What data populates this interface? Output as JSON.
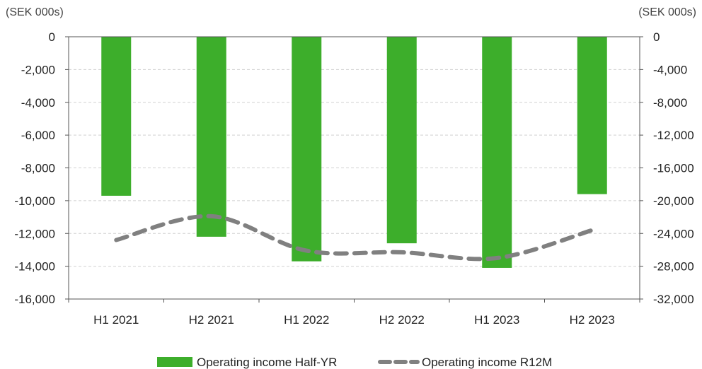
{
  "chart_data": {
    "type": "bar",
    "categories": [
      "H1 2021",
      "H2 2021",
      "H1 2022",
      "H2 2022",
      "H1 2023",
      "H2 2023"
    ],
    "series": [
      {
        "name": "Operating income Half-YR",
        "type": "bar",
        "axis": "left",
        "color": "#3dae2b",
        "values": [
          -9700,
          -12200,
          -13700,
          -12600,
          -14100,
          -9600
        ]
      },
      {
        "name": "Operating income R12M",
        "type": "line",
        "style": "dashed",
        "axis": "right",
        "color": "#808080",
        "values": [
          -24800,
          -21900,
          -26100,
          -26300,
          -27000,
          -23600
        ]
      }
    ],
    "left_axis": {
      "unit_label": "(SEK 000s)",
      "ylim": [
        -16000,
        0
      ],
      "ticks": [
        0,
        -2000,
        -4000,
        -6000,
        -8000,
        -10000,
        -12000,
        -14000,
        -16000
      ],
      "tick_labels": [
        "0",
        "-2,000",
        "-4,000",
        "-6,000",
        "-8,000",
        "-10,000",
        "-12,000",
        "-14,000",
        "-16,000"
      ]
    },
    "right_axis": {
      "unit_label": "(SEK 000s)",
      "ylim": [
        -32000,
        0
      ],
      "ticks": [
        0,
        -4000,
        -8000,
        -12000,
        -16000,
        -20000,
        -24000,
        -28000,
        -32000
      ],
      "tick_labels": [
        "0",
        "-4,000",
        "-8,000",
        "-12,000",
        "-16,000",
        "-20,000",
        "-24,000",
        "-28,000",
        "-32,000"
      ]
    },
    "grid": true,
    "legend_position": "bottom-center"
  }
}
